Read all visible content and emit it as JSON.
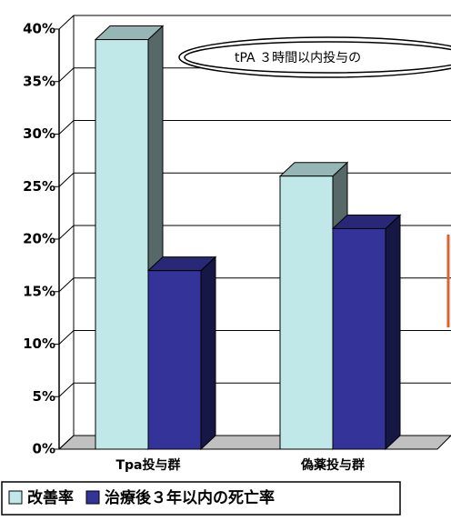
{
  "chart_data": {
    "type": "bar3d",
    "annotation": "tPA ３時間以内投与の",
    "categories": [
      "Tpa投与群",
      "偽薬投与群"
    ],
    "series": [
      {
        "name": "改善率",
        "color": "#c0e8e8",
        "values": [
          39,
          26
        ]
      },
      {
        "name": "治療後３年以内の死亡率",
        "color": "#333399",
        "values": [
          17,
          21
        ]
      }
    ],
    "ylim": [
      0,
      40
    ],
    "yticks": [
      {
        "value": 0,
        "label": "0%"
      },
      {
        "value": 5,
        "label": "5%"
      },
      {
        "value": 10,
        "label": "10%"
      },
      {
        "value": 15,
        "label": "15%"
      },
      {
        "value": 20,
        "label": "20%"
      },
      {
        "value": 25,
        "label": "25%"
      },
      {
        "value": 30,
        "label": "30%"
      },
      {
        "value": 35,
        "label": "35%"
      },
      {
        "value": 40,
        "label": "40%"
      }
    ],
    "grid": true,
    "legend": "bottom"
  }
}
